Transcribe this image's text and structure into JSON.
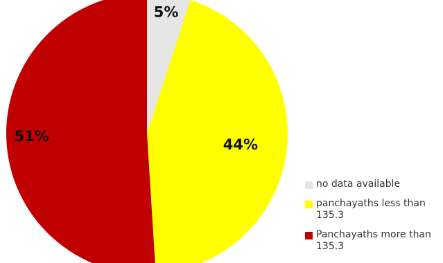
{
  "chart_data": {
    "type": "pie",
    "slices": [
      {
        "label": "no data available",
        "value": 5,
        "display": "5%",
        "color": "#e6e6e6"
      },
      {
        "label": "panchayaths less than 135.3",
        "value": 44,
        "display": "44%",
        "color": "#ffff00"
      },
      {
        "label": "Panchayaths more than 135.3",
        "value": 51,
        "display": "51%",
        "color": "#c00000"
      }
    ],
    "start_angle_deg": 0,
    "direction": "clockwise",
    "legend_position": "bottom-right"
  },
  "legend": {
    "items": [
      {
        "label": "no data available",
        "color": "#e6e6e6"
      },
      {
        "label": "panchayaths less than 135.3",
        "color": "#ffff00"
      },
      {
        "label": "Panchayaths more than 135.3",
        "color": "#c00000"
      }
    ]
  }
}
